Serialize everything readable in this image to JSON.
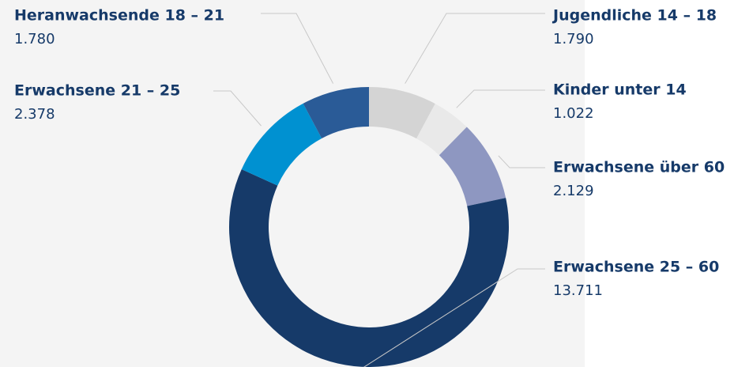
{
  "chart_data": {
    "type": "donut",
    "categories": [
      "Jugendliche 14 – 18",
      "Kinder unter 14",
      "Erwachsene über 60",
      "Erwachsene 25 – 60",
      "Erwachsene 21 – 25",
      "Heranwachsende 18 – 21"
    ],
    "values": [
      1790,
      1022,
      2129,
      13711,
      2378,
      1780
    ],
    "value_labels": [
      "1.790",
      "1.022",
      "2.129",
      "13.711",
      "2.378",
      "1.780"
    ],
    "colors": [
      "#d4d4d4",
      "#e9e9e9",
      "#8e97c1",
      "#163a69",
      "#0091d1",
      "#2a5b97"
    ]
  }
}
